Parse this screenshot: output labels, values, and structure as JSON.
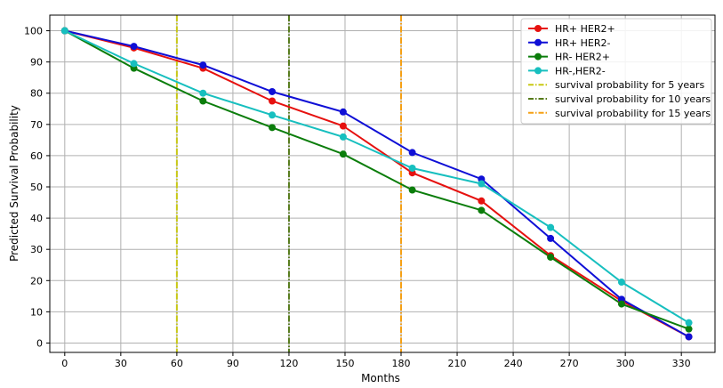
{
  "chart_data": {
    "type": "line",
    "title": "",
    "xlabel": "Months",
    "ylabel": "Predicted Survival Probability",
    "xlim": [
      -8,
      348
    ],
    "ylim": [
      -3,
      105
    ],
    "xticks": [
      0,
      30,
      60,
      90,
      120,
      150,
      180,
      210,
      240,
      270,
      300,
      330
    ],
    "yticks": [
      0,
      10,
      20,
      30,
      40,
      50,
      60,
      70,
      80,
      90,
      100
    ],
    "grid": true,
    "legend_position": "top-right",
    "series": [
      {
        "name": "HR+ HER2+",
        "color": "#e6110f",
        "x": [
          0,
          37,
          74,
          111,
          149,
          186,
          223,
          260,
          298,
          334
        ],
        "y": [
          100,
          94.5,
          88,
          77.5,
          69.5,
          54.5,
          45.5,
          28,
          13.5,
          2
        ]
      },
      {
        "name": "HR+ HER2-",
        "color": "#0f0fd6",
        "x": [
          0,
          37,
          74,
          111,
          149,
          186,
          223,
          260,
          298,
          334
        ],
        "y": [
          100,
          95,
          89,
          80.5,
          74,
          61,
          52.5,
          33.5,
          14,
          2
        ]
      },
      {
        "name": "HR- HER2+",
        "color": "#0b7d0b",
        "x": [
          0,
          37,
          74,
          111,
          149,
          186,
          223,
          260,
          298,
          334
        ],
        "y": [
          100,
          88,
          77.5,
          69,
          60.5,
          49,
          42.5,
          27.5,
          12.5,
          4.5
        ]
      },
      {
        "name": "HR-,HER2-",
        "color": "#17bfbf",
        "x": [
          0,
          37,
          74,
          111,
          149,
          186,
          223,
          260,
          298,
          334
        ],
        "y": [
          100,
          89.5,
          80,
          73,
          66,
          56,
          51,
          37,
          19.5,
          6.5
        ]
      }
    ],
    "reference_lines": [
      {
        "name": "survival probability for 5 years",
        "x": 60,
        "color": "#c8c814"
      },
      {
        "name": "survival probability for 10 years",
        "x": 120,
        "color": "#557a1a"
      },
      {
        "name": "survival probability for 15 years",
        "x": 180,
        "color": "#f5a014"
      }
    ]
  }
}
